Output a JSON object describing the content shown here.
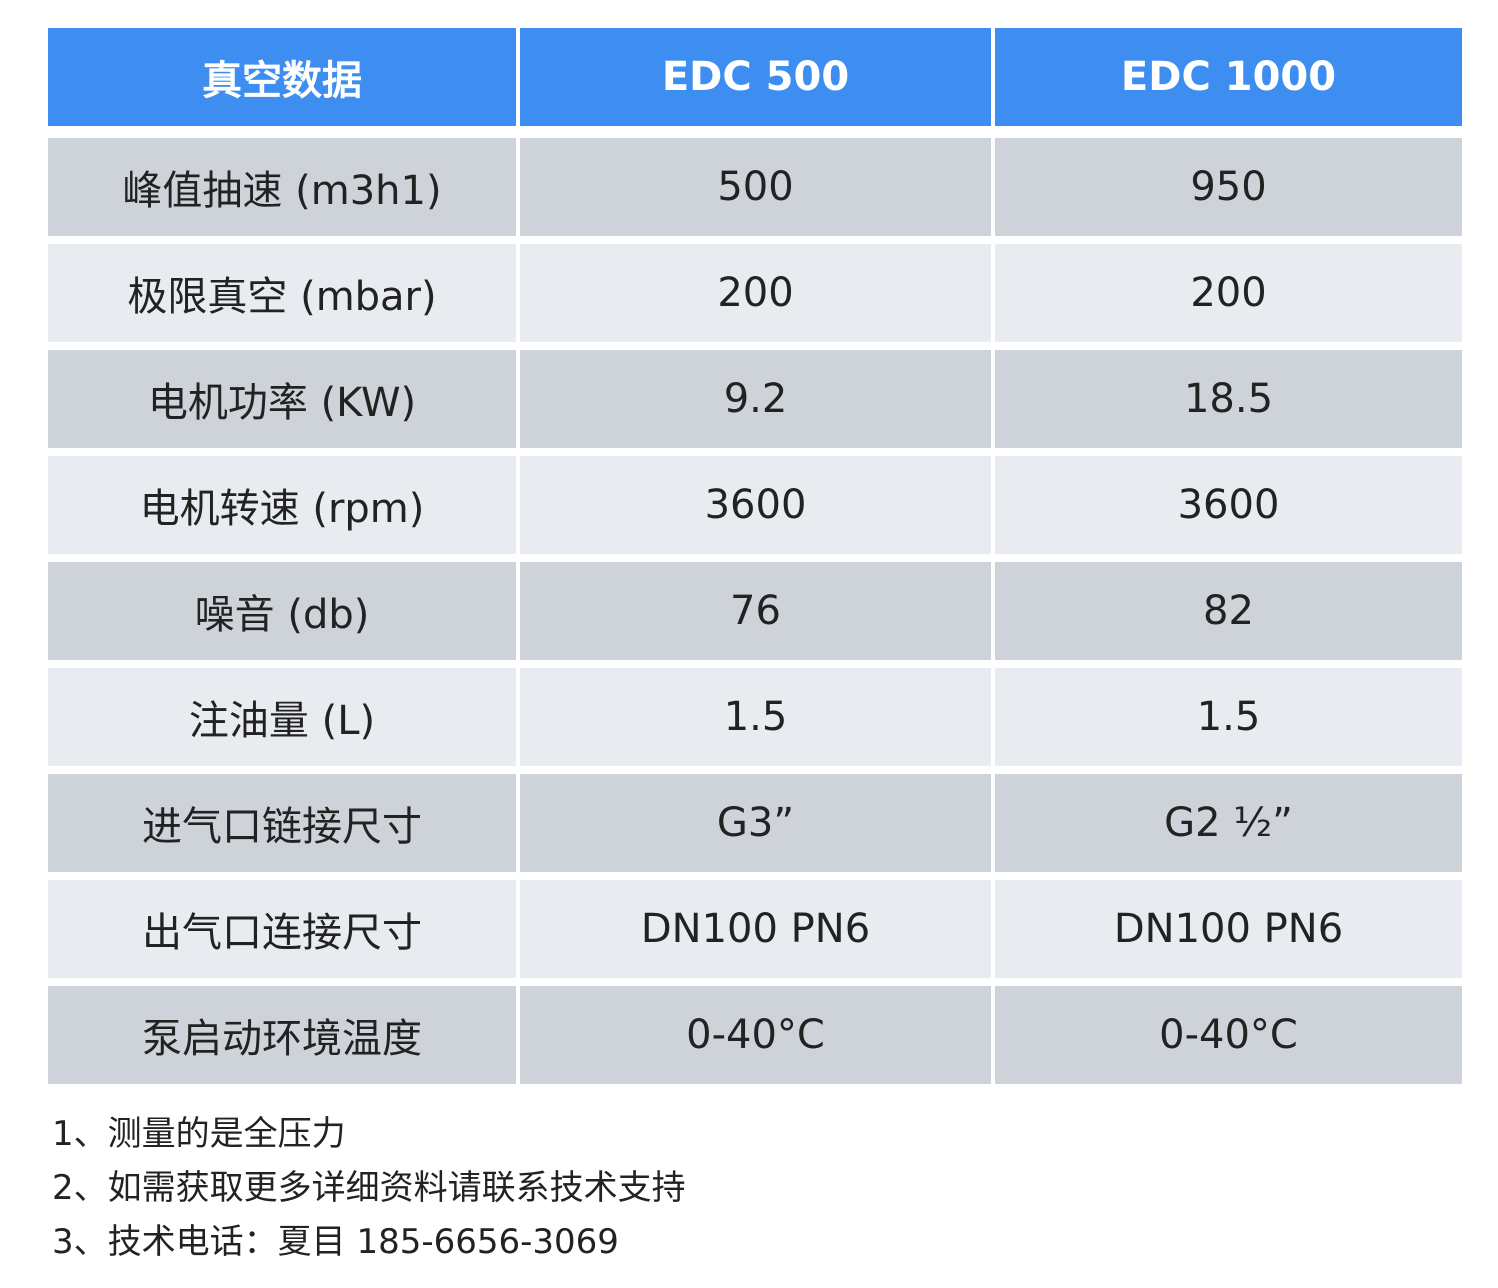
{
  "table": {
    "headers": [
      "真空数据",
      "EDC 500",
      "EDC 1000"
    ],
    "rows": [
      {
        "label": "峰值抽速 (m3h1)",
        "edc500": "500",
        "edc1000": "950"
      },
      {
        "label": "极限真空 (mbar)",
        "edc500": "200",
        "edc1000": "200"
      },
      {
        "label": "电机功率 (KW)",
        "edc500": "9.2",
        "edc1000": "18.5"
      },
      {
        "label": "电机转速 (rpm)",
        "edc500": "3600",
        "edc1000": "3600"
      },
      {
        "label": "噪音 (db)",
        "edc500": "76",
        "edc1000": "82"
      },
      {
        "label": "注油量 (L)",
        "edc500": "1.5",
        "edc1000": "1.5"
      },
      {
        "label": "进气口链接尺寸",
        "edc500": "G3”",
        "edc1000": "G2 ½”"
      },
      {
        "label": "出气口连接尺寸",
        "edc500": "DN100 PN6",
        "edc1000": "DN100 PN6"
      },
      {
        "label": "泵启动环境温度",
        "edc500": "0-40°C",
        "edc1000": "0-40°C"
      }
    ]
  },
  "notes": [
    "1、测量的是全压力",
    "2、如需获取更多详细资料请联系技术支持",
    "3、技术电话：夏目 185-6656-3069"
  ],
  "colors": {
    "header_bg": "#3d8ef0",
    "row_dark": "#ced3da",
    "row_light": "#e8ebef"
  }
}
